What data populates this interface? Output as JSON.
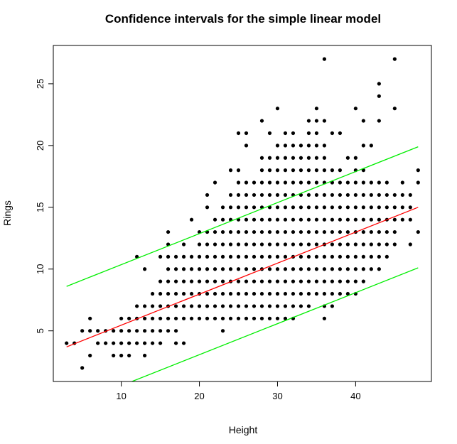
{
  "chart_data": {
    "type": "scatter",
    "title": "Confidence intervals for the simple linear model",
    "xlabel": "Height",
    "ylabel": "Rings",
    "xlim": [
      1.3,
      49.7
    ],
    "ylim": [
      0.9,
      28.1
    ],
    "xticks": [
      10,
      20,
      30,
      40
    ],
    "yticks": [
      5,
      10,
      15,
      20,
      25
    ],
    "grid": false,
    "legend": "none",
    "lines": [
      {
        "role": "fit",
        "color": "#ff0000",
        "x": [
          3,
          48
        ],
        "y": [
          3.7,
          15.0
        ]
      },
      {
        "role": "upper",
        "color": "#00ee00",
        "x": [
          3,
          48
        ],
        "y": [
          8.6,
          19.9
        ]
      },
      {
        "role": "lower",
        "color": "#00ee00",
        "x": [
          3,
          48
        ],
        "y": [
          -1.2,
          10.1
        ]
      }
    ],
    "points": {
      "color": "#000000",
      "columns": [
        {
          "x": 3,
          "y": [
            4
          ]
        },
        {
          "x": 4,
          "y": [
            4
          ]
        },
        {
          "x": 5,
          "y": [
            2,
            5
          ]
        },
        {
          "x": 6,
          "y": [
            3,
            5,
            6
          ]
        },
        {
          "x": 7,
          "y": [
            4,
            5
          ]
        },
        {
          "x": 8,
          "y": [
            4,
            5
          ]
        },
        {
          "x": 9,
          "y": [
            3,
            4,
            5
          ]
        },
        {
          "x": 10,
          "y": [
            3,
            4,
            5,
            6
          ]
        },
        {
          "x": 11,
          "y": [
            3,
            4,
            5,
            6
          ]
        },
        {
          "x": 12,
          "y": [
            4,
            5,
            6,
            7,
            11
          ]
        },
        {
          "x": 13,
          "y": [
            3,
            4,
            5,
            6,
            7,
            10
          ]
        },
        {
          "x": 14,
          "y": [
            4,
            5,
            6,
            7,
            8
          ]
        },
        {
          "x": 15,
          "y": [
            4,
            5,
            6,
            7,
            8,
            9,
            11
          ]
        },
        {
          "x": 16,
          "y": [
            5,
            6,
            7,
            8,
            9,
            10,
            11,
            12,
            13
          ]
        },
        {
          "x": 17,
          "y": [
            4,
            5,
            6,
            7,
            8,
            9,
            10,
            11
          ]
        },
        {
          "x": 18,
          "y": [
            4,
            6,
            7,
            8,
            9,
            10,
            11,
            12
          ]
        },
        {
          "x": 19,
          "y": [
            6,
            7,
            8,
            9,
            10,
            11,
            14
          ]
        },
        {
          "x": 20,
          "y": [
            6,
            7,
            8,
            9,
            10,
            11,
            12,
            13
          ]
        },
        {
          "x": 21,
          "y": [
            6,
            7,
            8,
            9,
            10,
            11,
            12,
            13,
            15,
            16
          ]
        },
        {
          "x": 22,
          "y": [
            6,
            7,
            8,
            9,
            10,
            11,
            12,
            13,
            14,
            17
          ]
        },
        {
          "x": 23,
          "y": [
            5,
            6,
            7,
            8,
            9,
            10,
            11,
            12,
            13,
            14,
            15
          ]
        },
        {
          "x": 24,
          "y": [
            6,
            7,
            8,
            9,
            10,
            11,
            12,
            13,
            14,
            15,
            16,
            18
          ]
        },
        {
          "x": 25,
          "y": [
            6,
            7,
            8,
            9,
            10,
            11,
            12,
            13,
            14,
            15,
            16,
            17,
            18,
            21
          ]
        },
        {
          "x": 26,
          "y": [
            6,
            7,
            8,
            9,
            10,
            11,
            12,
            13,
            14,
            15,
            16,
            17,
            20,
            21
          ]
        },
        {
          "x": 27,
          "y": [
            6,
            7,
            8,
            9,
            10,
            11,
            12,
            13,
            14,
            15,
            16,
            17
          ]
        },
        {
          "x": 28,
          "y": [
            6,
            7,
            8,
            9,
            10,
            11,
            12,
            13,
            14,
            15,
            16,
            17,
            18,
            19,
            22
          ]
        },
        {
          "x": 29,
          "y": [
            6,
            7,
            8,
            9,
            10,
            11,
            12,
            13,
            14,
            15,
            16,
            17,
            18,
            19,
            21
          ]
        },
        {
          "x": 30,
          "y": [
            6,
            7,
            8,
            9,
            10,
            11,
            12,
            13,
            14,
            15,
            16,
            17,
            18,
            19,
            20,
            23
          ]
        },
        {
          "x": 31,
          "y": [
            6,
            7,
            8,
            9,
            10,
            11,
            12,
            13,
            14,
            15,
            16,
            17,
            18,
            19,
            20,
            21
          ]
        },
        {
          "x": 32,
          "y": [
            6,
            7,
            8,
            9,
            10,
            11,
            12,
            13,
            14,
            15,
            16,
            17,
            18,
            19,
            20,
            21
          ]
        },
        {
          "x": 33,
          "y": [
            7,
            8,
            9,
            10,
            11,
            12,
            13,
            14,
            15,
            16,
            17,
            18,
            19,
            20
          ]
        },
        {
          "x": 34,
          "y": [
            7,
            8,
            9,
            10,
            11,
            12,
            13,
            14,
            15,
            16,
            17,
            18,
            19,
            20,
            21,
            22
          ]
        },
        {
          "x": 35,
          "y": [
            8,
            9,
            10,
            11,
            12,
            13,
            14,
            15,
            16,
            17,
            18,
            19,
            20,
            21,
            22,
            23
          ]
        },
        {
          "x": 36,
          "y": [
            6,
            7,
            8,
            9,
            10,
            11,
            12,
            13,
            14,
            15,
            16,
            17,
            18,
            19,
            20,
            22,
            27
          ]
        },
        {
          "x": 37,
          "y": [
            7,
            8,
            9,
            10,
            11,
            12,
            13,
            14,
            15,
            16,
            17,
            18,
            21
          ]
        },
        {
          "x": 38,
          "y": [
            8,
            9,
            10,
            11,
            12,
            13,
            14,
            15,
            16,
            17,
            18,
            21
          ]
        },
        {
          "x": 39,
          "y": [
            8,
            9,
            10,
            11,
            12,
            13,
            14,
            15,
            16,
            17,
            19
          ]
        },
        {
          "x": 40,
          "y": [
            8,
            9,
            10,
            11,
            12,
            13,
            14,
            15,
            16,
            17,
            18,
            19,
            23
          ]
        },
        {
          "x": 41,
          "y": [
            9,
            10,
            11,
            12,
            13,
            14,
            15,
            16,
            17,
            18,
            20,
            22
          ]
        },
        {
          "x": 42,
          "y": [
            10,
            11,
            12,
            13,
            14,
            15,
            16,
            17,
            20
          ]
        },
        {
          "x": 43,
          "y": [
            10,
            11,
            12,
            13,
            14,
            15,
            16,
            17,
            22,
            24,
            25
          ]
        },
        {
          "x": 44,
          "y": [
            11,
            12,
            13,
            14,
            15,
            16,
            17
          ]
        },
        {
          "x": 45,
          "y": [
            12,
            13,
            14,
            15,
            16,
            23,
            27
          ]
        },
        {
          "x": 46,
          "y": [
            14,
            15,
            16,
            17
          ]
        },
        {
          "x": 47,
          "y": [
            12,
            14,
            15,
            16
          ]
        },
        {
          "x": 48,
          "y": [
            13,
            17,
            18
          ]
        }
      ]
    }
  }
}
